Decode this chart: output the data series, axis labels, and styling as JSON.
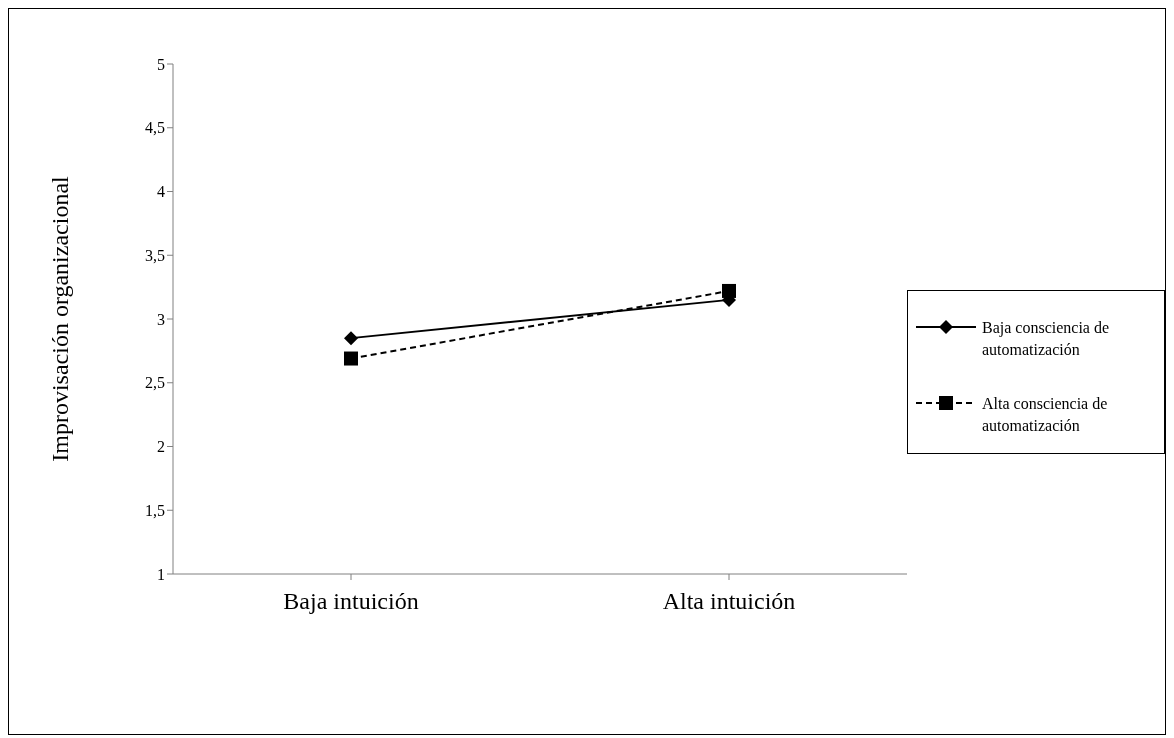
{
  "chart_data": {
    "type": "line",
    "ylabel": "Improvisación organizacional",
    "categories": [
      "Baja intuición",
      "Alta intuición"
    ],
    "series": [
      {
        "name": "Baja consciencia de automatización",
        "color": "#000000",
        "values": [
          2.85,
          3.15
        ],
        "marker": "diamond",
        "line_style": "solid"
      },
      {
        "name": "Alta consciencia de automatización",
        "color": "#000000",
        "values": [
          2.69,
          3.22
        ],
        "marker": "square",
        "line_style": "dashed"
      }
    ],
    "ylim": [
      1,
      5
    ],
    "yticks": [
      1,
      {
        "value": 1.5,
        "label": "1,5"
      },
      2,
      {
        "value": 2.5,
        "label": "2,5"
      },
      3,
      {
        "value": 3.5,
        "label": "3,5"
      },
      4,
      {
        "value": 4.5,
        "label": "4,5"
      },
      5
    ],
    "grid": false,
    "legend": "right"
  }
}
